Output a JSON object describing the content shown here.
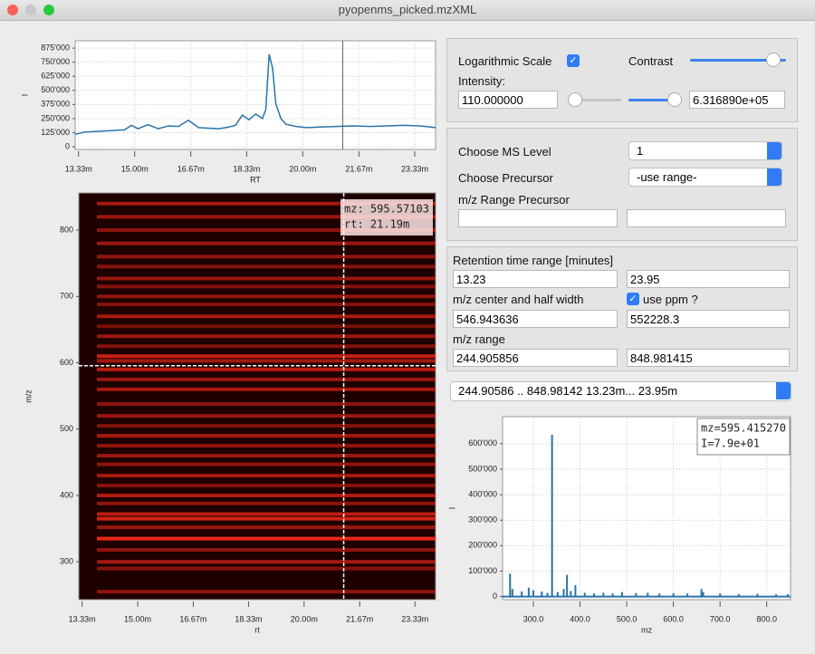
{
  "window": {
    "title": "pyopenms_picked.mzXML"
  },
  "display_panel": {
    "log_scale_label": "Logarithmic Scale",
    "log_scale_checked": true,
    "contrast_label": "Contrast",
    "intensity_label": "Intensity:",
    "intensity_min": "110.000000",
    "intensity_max": "6.316890e+05"
  },
  "ms_panel": {
    "ms_level_label": "Choose MS Level",
    "ms_level": "1",
    "precursor_label": "Choose Precursor",
    "precursor": "-use range-",
    "mz_range_precursor_label": "m/z Range Precursor"
  },
  "range_panel": {
    "rt_label": "Retention time range [minutes]",
    "rt_min": "13.23",
    "rt_max": "23.95",
    "mz_center_label": "m/z center and half width",
    "use_ppm_label": "use ppm ?",
    "use_ppm_checked": true,
    "mz_center": "546.943636",
    "mz_half_width": "552228.3",
    "mz_range_label": "m/z range",
    "mz_min": "244.905856",
    "mz_max": "848.981415"
  },
  "range_dropdown": "244.90586 ..  848.98142  13.23m... 23.95m",
  "chart_data": [
    {
      "type": "line",
      "x_label": "RT",
      "y_label": "I",
      "color": "#2a73a8",
      "grid": true,
      "x": [
        13.23,
        13.5,
        13.8,
        14.1,
        14.4,
        14.7,
        14.9,
        15.1,
        15.4,
        15.7,
        16.0,
        16.3,
        16.6,
        16.9,
        17.2,
        17.5,
        17.8,
        18.0,
        18.2,
        18.4,
        18.6,
        18.8,
        18.9,
        19.0,
        19.1,
        19.2,
        19.35,
        19.5,
        19.8,
        20.1,
        20.5,
        21.0,
        21.5,
        22.0,
        22.5,
        23.0,
        23.5,
        23.95
      ],
      "values": [
        110000,
        130000,
        135000,
        140000,
        145000,
        150000,
        190000,
        160000,
        195000,
        160000,
        185000,
        180000,
        235000,
        170000,
        165000,
        160000,
        175000,
        190000,
        280000,
        240000,
        290000,
        250000,
        330000,
        820000,
        700000,
        380000,
        250000,
        200000,
        180000,
        170000,
        175000,
        180000,
        185000,
        180000,
        185000,
        190000,
        185000,
        170000
      ],
      "cursor_x": 21.19,
      "xlim": [
        13.23,
        23.95
      ],
      "ylim": [
        -24000,
        940000
      ],
      "xticks": [
        {
          "value": 13.33,
          "label": "13.33m"
        },
        {
          "value": 15.0,
          "label": "15.00m"
        },
        {
          "value": 16.67,
          "label": "16.67m"
        },
        {
          "value": 18.33,
          "label": "18.33m"
        },
        {
          "value": 20.0,
          "label": "20.00m"
        },
        {
          "value": 21.67,
          "label": "21.67m"
        },
        {
          "value": 23.33,
          "label": "23.33m"
        }
      ],
      "yticks": [
        0,
        {
          "value": 125000,
          "label": "125'000"
        },
        {
          "value": 250000,
          "label": "250'000"
        },
        {
          "value": 375000,
          "label": "375'000"
        },
        {
          "value": 500000,
          "label": "500'000"
        },
        {
          "value": 625000,
          "label": "625'000"
        },
        {
          "value": 750000,
          "label": "750'000"
        },
        {
          "value": 875000,
          "label": "875'000"
        }
      ]
    },
    {
      "type": "heatmap",
      "x_label": "rt",
      "y_label": "m/z",
      "color": "#ff2a1a",
      "bands": [
        255,
        290,
        300,
        318,
        335,
        352,
        365,
        372,
        388,
        400,
        415,
        430,
        447,
        460,
        475,
        490,
        505,
        520,
        538,
        560,
        575,
        590,
        603,
        610,
        625,
        640,
        655,
        670,
        688,
        700,
        715,
        727,
        745,
        760,
        780,
        800,
        820,
        840
      ],
      "band_intensity": [
        0.5,
        0.45,
        0.6,
        0.5,
        0.9,
        0.55,
        0.8,
        0.7,
        0.5,
        0.65,
        0.45,
        0.6,
        0.5,
        0.55,
        0.5,
        0.6,
        0.45,
        0.55,
        0.5,
        0.6,
        0.55,
        0.7,
        0.6,
        0.75,
        0.45,
        0.55,
        0.4,
        0.6,
        0.45,
        0.5,
        0.45,
        0.55,
        0.45,
        0.5,
        0.55,
        0.5,
        0.55,
        0.6
      ],
      "cursor_x": 21.19,
      "cursor_y": 595.57103,
      "annotation": [
        "mz: 595.57103",
        "rt:  21.19m"
      ],
      "xlim": [
        13.23,
        23.95
      ],
      "ylim": [
        243,
        856
      ],
      "xticks": [
        {
          "value": 13.33,
          "label": "13.33m"
        },
        {
          "value": 15.0,
          "label": "15.00m"
        },
        {
          "value": 16.67,
          "label": "16.67m"
        },
        {
          "value": 18.33,
          "label": "18.33m"
        },
        {
          "value": 20.0,
          "label": "20.00m"
        },
        {
          "value": 21.67,
          "label": "21.67m"
        },
        {
          "value": 23.33,
          "label": "23.33m"
        }
      ],
      "yticks": [
        300,
        400,
        500,
        600,
        700,
        800
      ]
    },
    {
      "type": "bar",
      "x_label": "mz",
      "y_label": "I",
      "color": "#2a73a8",
      "grid": true,
      "x": [
        250,
        255,
        275,
        290,
        300,
        318,
        330,
        340,
        352,
        365,
        372,
        380,
        390,
        410,
        430,
        450,
        470,
        490,
        520,
        545,
        570,
        600,
        630,
        660,
        664,
        700,
        740,
        780,
        820,
        845
      ],
      "values": [
        90000,
        30000,
        20000,
        35000,
        25000,
        20000,
        15000,
        635000,
        18000,
        30000,
        85000,
        22000,
        45000,
        15000,
        12000,
        15000,
        12000,
        18000,
        14000,
        15000,
        12000,
        14000,
        12000,
        30000,
        18000,
        12000,
        10000,
        11000,
        9000,
        10000
      ],
      "annotation": [
        "mz=595.415270",
        "I=7.9e+01"
      ],
      "xlim": [
        234,
        851
      ],
      "ylim": [
        -12000,
        706000
      ],
      "xticks": [
        {
          "value": 300,
          "label": "300.0"
        },
        {
          "value": 400,
          "label": "400.0"
        },
        {
          "value": 500,
          "label": "500.0"
        },
        {
          "value": 600,
          "label": "600.0"
        },
        {
          "value": 700,
          "label": "700.0"
        },
        {
          "value": 800,
          "label": "800.0"
        }
      ],
      "yticks": [
        0,
        {
          "value": 100000,
          "label": "100'000"
        },
        {
          "value": 200000,
          "label": "200'000"
        },
        {
          "value": 300000,
          "label": "300'000"
        },
        {
          "value": 400000,
          "label": "400'000"
        },
        {
          "value": 500000,
          "label": "500'000"
        },
        {
          "value": 600000,
          "label": "600'000"
        }
      ]
    }
  ]
}
